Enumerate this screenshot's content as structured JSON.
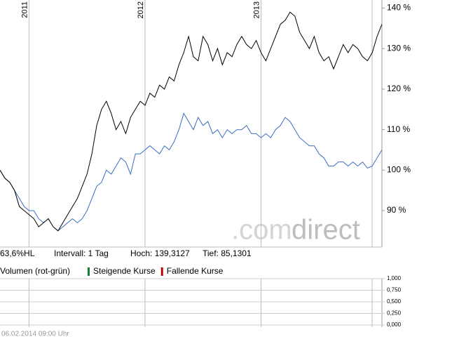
{
  "chart_data": [
    {
      "type": "line",
      "categories": [
        null,
        null,
        null,
        null,
        null,
        null,
        "2011",
        null,
        null,
        null,
        null,
        null,
        null,
        null,
        null,
        null,
        null,
        null,
        null,
        null,
        null,
        null,
        null,
        null,
        null,
        null,
        null,
        null,
        null,
        null,
        "2012",
        null,
        null,
        null,
        null,
        null,
        null,
        null,
        null,
        null,
        null,
        null,
        null,
        null,
        null,
        null,
        null,
        null,
        null,
        null,
        null,
        null,
        null,
        null,
        "2013",
        null,
        null,
        null,
        null,
        null,
        null,
        null,
        null,
        null,
        null,
        null,
        null,
        null,
        null,
        null,
        null,
        null,
        null,
        null,
        null,
        null,
        null,
        null,
        null,
        null
      ],
      "series": [
        {
          "color": "#000000",
          "values": [
            100,
            98,
            97,
            95,
            91,
            90,
            89,
            88,
            86,
            87,
            88,
            86,
            85,
            87,
            89,
            91,
            93,
            96,
            99,
            104,
            111,
            115,
            117,
            114,
            110,
            112,
            109,
            113,
            115,
            117,
            116,
            119,
            118,
            121,
            120,
            123,
            122,
            126,
            129,
            133,
            128,
            127,
            133,
            131,
            127,
            130,
            126,
            129,
            128,
            131,
            133,
            131,
            130,
            132,
            129,
            127,
            130,
            133,
            136,
            137,
            139,
            138,
            134,
            132,
            130,
            133,
            129,
            127,
            128,
            125,
            128,
            131,
            129,
            131,
            130,
            128,
            127,
            129,
            133,
            136
          ]
        },
        {
          "color": "#3a6cc0",
          "values": [
            100,
            98,
            97,
            95,
            93,
            91,
            90,
            90,
            88,
            87,
            88,
            86,
            85,
            86,
            87,
            88,
            87,
            88,
            90,
            93,
            96,
            97,
            100,
            99,
            101,
            103,
            102,
            99,
            104,
            104,
            105,
            106,
            105,
            104,
            106,
            105,
            107,
            110,
            114,
            112,
            110,
            113,
            111,
            112,
            109,
            110,
            108,
            110,
            109,
            110,
            110,
            111,
            109,
            109,
            108,
            109,
            108,
            110,
            111,
            113,
            112,
            110,
            108,
            107,
            106,
            106,
            104,
            103,
            101,
            101,
            102,
            102,
            101,
            102,
            101,
            102,
            100.5,
            101,
            103,
            105
          ]
        }
      ],
      "ylim": [
        81,
        142
      ],
      "yticks": [
        {
          "value": 90,
          "label": "90 %"
        },
        {
          "value": 100,
          "label": "100 %"
        },
        {
          "value": 110,
          "label": "110 %"
        },
        {
          "value": 120,
          "label": "120 %"
        },
        {
          "value": 130,
          "label": "130 %"
        },
        {
          "value": 140,
          "label": "140 %"
        }
      ],
      "annotations": [
        "63,6%HL",
        "Intervall: 1 Tag",
        "Hoch: 139,3127",
        "Tief: 85,1301"
      ],
      "watermark": [
        ".com",
        "direct"
      ]
    },
    {
      "type": "bar",
      "title": "Volumen (rot-grün)",
      "series": [
        {
          "name": "Steigende Kurse",
          "color": "#1a7a3a",
          "values": []
        },
        {
          "name": "Fallende Kurse",
          "color": "#c00000",
          "values": []
        }
      ],
      "ylim": [
        0,
        1
      ],
      "yticks": [
        {
          "value": 0,
          "label": "0,000"
        },
        {
          "value": 0.25,
          "label": "0,250"
        },
        {
          "value": 0.5,
          "label": "0,500"
        },
        {
          "value": 0.75,
          "label": "0,750"
        },
        {
          "value": 1,
          "label": "1,000"
        }
      ]
    }
  ],
  "timestamp": "06.02.2014 09:00 Uhr"
}
